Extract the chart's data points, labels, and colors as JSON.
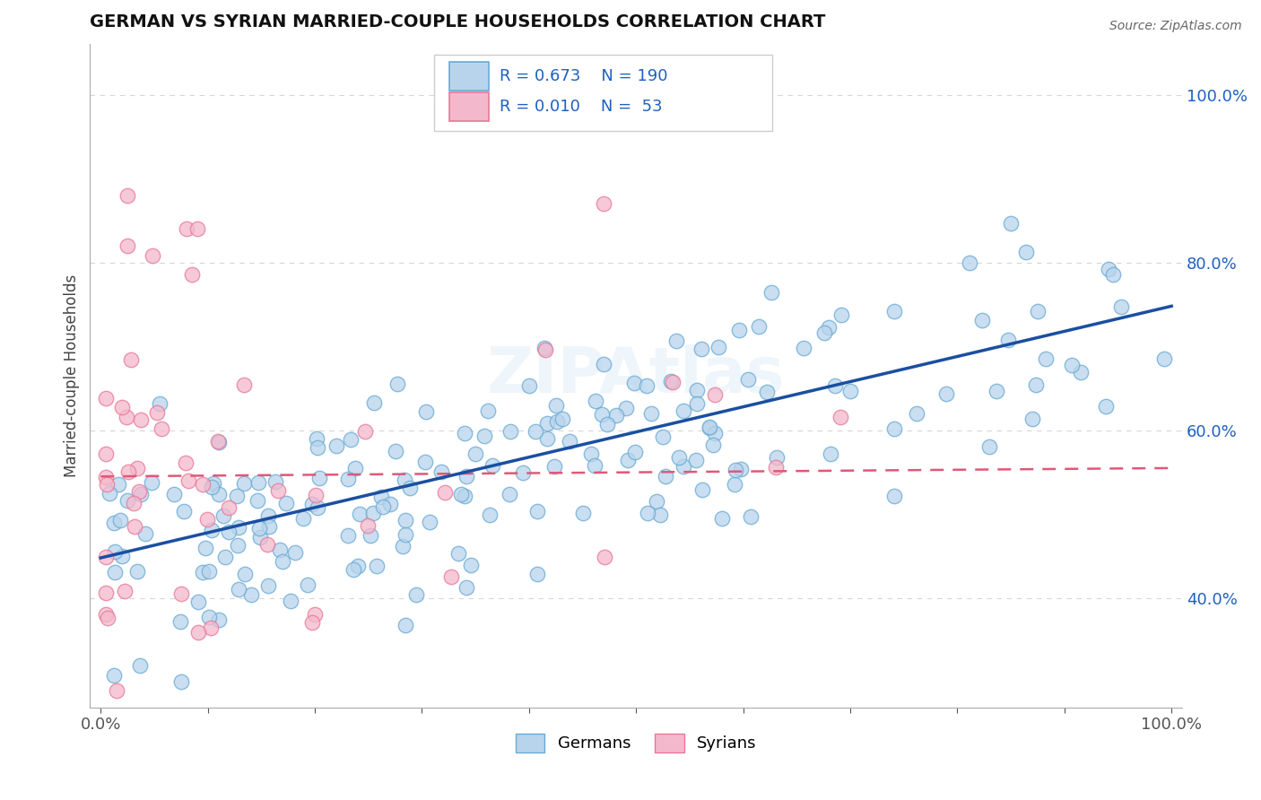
{
  "title": "GERMAN VS SYRIAN MARRIED-COUPLE HOUSEHOLDS CORRELATION CHART",
  "source_text": "Source: ZipAtlas.com",
  "ylabel": "Married-couple Households",
  "german_color": "#b8d4ec",
  "german_edge_color": "#6aaad4",
  "syrian_color": "#f4b8cc",
  "syrian_edge_color": "#e87898",
  "german_line_color": "#1a4fa0",
  "syrian_line_color": "#e05878",
  "legend_text_color": "#2060c0",
  "watermark": "ZIPAtlas",
  "german_R": 0.673,
  "german_N": 190,
  "syrian_R": 0.01,
  "syrian_N": 53,
  "background_color": "#ffffff",
  "grid_color": "#cccccc",
  "ytick_values": [
    0.4,
    0.6,
    0.8,
    1.0
  ],
  "xlim": [
    -0.01,
    1.01
  ],
  "ylim": [
    0.27,
    1.06
  ]
}
